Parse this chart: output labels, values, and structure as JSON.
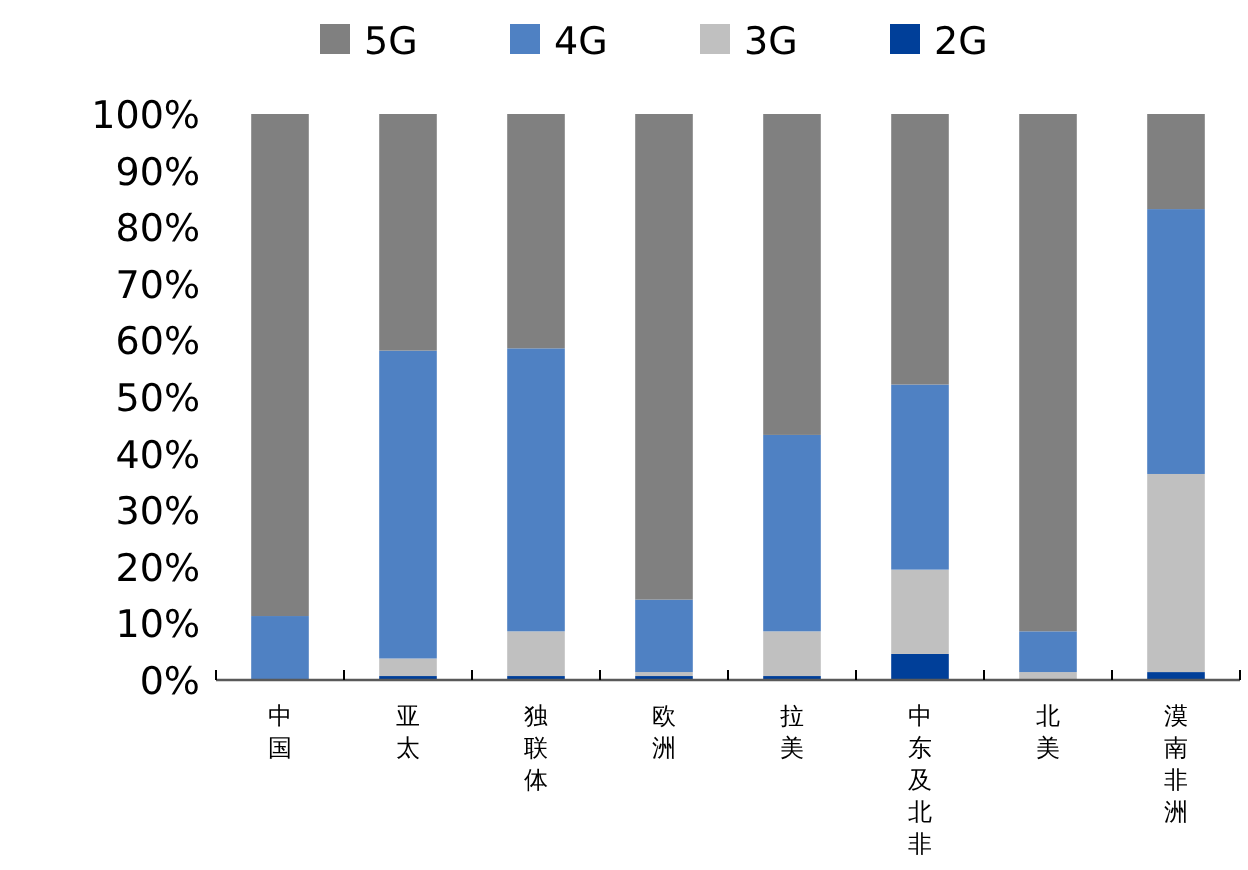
{
  "chart_data": {
    "type": "bar",
    "stacked": true,
    "legend": "top",
    "grid": false,
    "categories": [
      "中国",
      "亚太",
      "独联体",
      "欧洲",
      "拉美",
      "中东及北非",
      "北美",
      "漠南非洲"
    ],
    "series": [
      {
        "name": "2G",
        "color": "#003f99",
        "values": [
          0,
          0.7,
          0.7,
          0.7,
          0.7,
          4.6,
          0,
          1.4
        ]
      },
      {
        "name": "3G",
        "color": "#c0c0c0",
        "values": [
          0,
          3.1,
          7.9,
          0.7,
          7.9,
          14.9,
          1.4,
          35.0
        ]
      },
      {
        "name": "4G",
        "color": "#4f81c3",
        "values": [
          11.3,
          54.4,
          50.0,
          12.8,
          34.7,
          32.7,
          7.2,
          46.8
        ]
      },
      {
        "name": "5G",
        "color": "#808080",
        "values": [
          88.7,
          41.8,
          41.4,
          85.8,
          56.7,
          47.8,
          91.4,
          16.8
        ]
      }
    ],
    "ylim": [
      0,
      100
    ],
    "yticks": [
      {
        "value": 0,
        "label": "0%"
      },
      {
        "value": 10,
        "label": "10%"
      },
      {
        "value": 20,
        "label": "20%"
      },
      {
        "value": 30,
        "label": "30%"
      },
      {
        "value": 40,
        "label": "40%"
      },
      {
        "value": 50,
        "label": "50%"
      },
      {
        "value": 60,
        "label": "60%"
      },
      {
        "value": 70,
        "label": "70%"
      },
      {
        "value": 80,
        "label": "80%"
      },
      {
        "value": 90,
        "label": "90%"
      },
      {
        "value": 100,
        "label": "100%"
      }
    ]
  }
}
